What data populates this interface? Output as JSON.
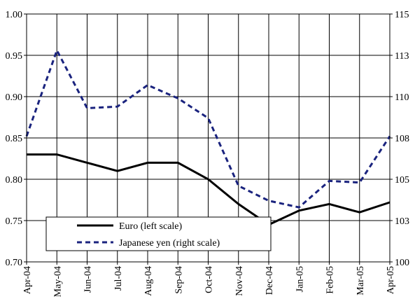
{
  "chart_data": {
    "type": "line",
    "title": "",
    "categories": [
      "Apr-04",
      "May-04",
      "Jun-04",
      "Jul-04",
      "Aug-04",
      "Sep-04",
      "Oct-04",
      "Nov-04",
      "Dec-04",
      "Jan-05",
      "Feb-05",
      "Mar-05",
      "Apr-05"
    ],
    "left_axis": {
      "ylim": [
        0.7,
        1.0
      ],
      "ticks": [
        "0.70",
        "0.75",
        "0.80",
        "0.85",
        "0.90",
        "0.95",
        "1.00"
      ],
      "tick_values": [
        0.7,
        0.75,
        0.8,
        0.85,
        0.9,
        0.95,
        1.0
      ]
    },
    "right_axis": {
      "ylim": [
        100,
        115
      ],
      "ticks": [
        "100",
        "103",
        "105",
        "108",
        "110",
        "113",
        "115"
      ],
      "tick_values": [
        100,
        102.5,
        105,
        107.5,
        110,
        112.5,
        115
      ]
    },
    "series": [
      {
        "name": "Euro (left scale)",
        "axis": "left",
        "style": "solid",
        "color": "#000000",
        "values": [
          0.83,
          0.83,
          0.82,
          0.81,
          0.82,
          0.82,
          0.8,
          0.77,
          0.745,
          0.762,
          0.77,
          0.76,
          0.772
        ]
      },
      {
        "name": "Japanese yen (right scale)",
        "axis": "right",
        "style": "dashed",
        "color": "#1a237e",
        "values": [
          107.6,
          112.8,
          109.3,
          109.4,
          110.7,
          109.9,
          108.7,
          104.6,
          103.7,
          103.3,
          104.9,
          104.8,
          107.6
        ]
      }
    ],
    "grid": "horizontal",
    "legend": "bottom-left"
  }
}
